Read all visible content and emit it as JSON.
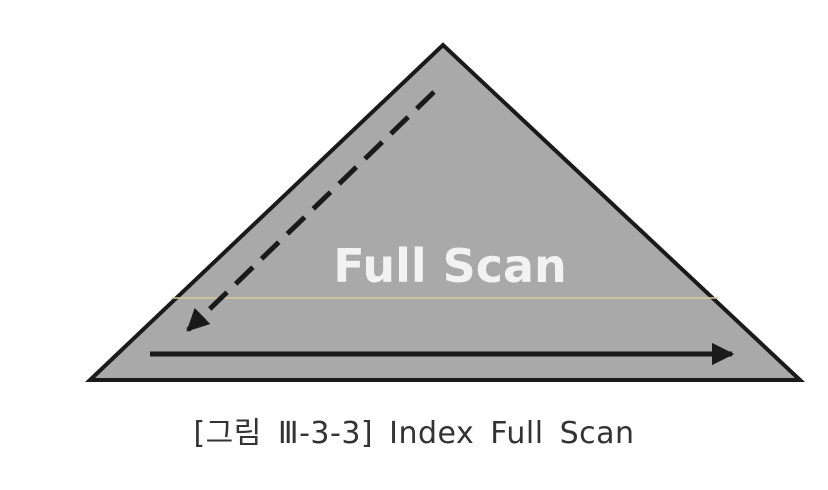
{
  "diagram": {
    "label": "Full Scan",
    "colors": {
      "fill": "#a9a9a9",
      "stroke": "#1a1a1a",
      "label": "#f2f2f2",
      "arrow": "#1a1a1a",
      "scan_line": "#d8c8a0"
    }
  },
  "caption": {
    "text": "[그림 Ⅲ-3-3] Index Full Scan"
  }
}
